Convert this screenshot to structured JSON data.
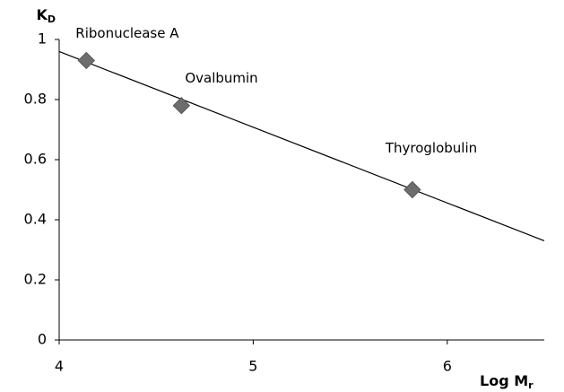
{
  "chart_data": {
    "type": "scatter",
    "xlabel": {
      "text": "Log M",
      "sub": "r"
    },
    "ylabel": {
      "text": "K",
      "sub": "D"
    },
    "x": [
      4.14,
      4.63,
      5.82
    ],
    "series": [
      {
        "color": "#6d6d6d",
        "values": [
          0.93,
          0.78,
          0.5
        ]
      }
    ],
    "point_labels": [
      "Ribonuclease A",
      "Ovalbumin",
      "Thyroglobulin"
    ],
    "trendline": {
      "x": [
        4,
        6.5
      ],
      "values": [
        0.96,
        0.33
      ],
      "color": "#000000"
    },
    "xlim": [
      4,
      6.5
    ],
    "ylim": [
      0,
      1
    ],
    "xticks": [
      4,
      5,
      6
    ],
    "yticks": [
      0,
      0.2,
      0.4,
      0.6,
      0.8,
      1
    ],
    "grid": false
  }
}
